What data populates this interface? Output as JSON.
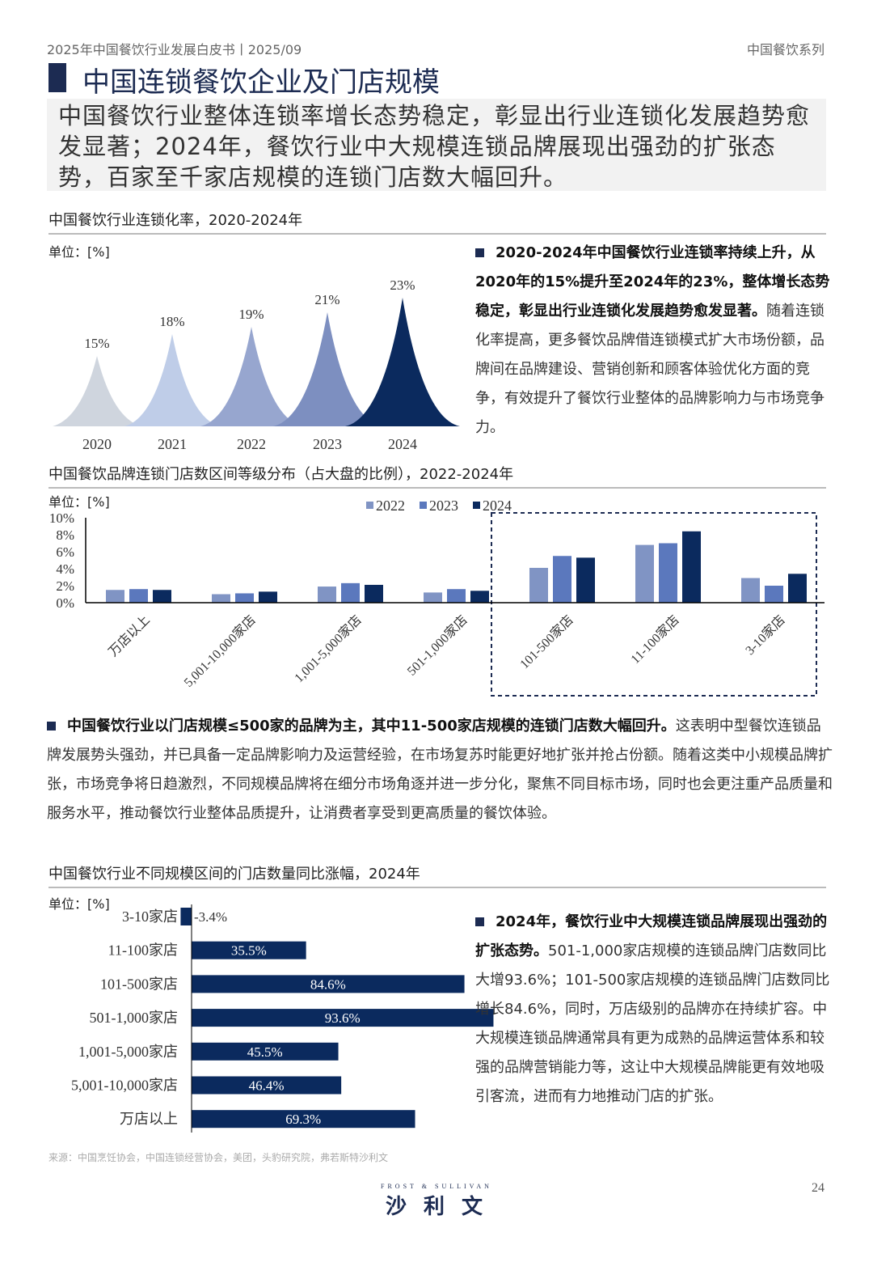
{
  "header": {
    "left": "2025年中国餐饮行业发展白皮书丨2025/09",
    "right": "中国餐饮系列"
  },
  "title": "中国连锁餐饮企业及门店规模",
  "summary": "中国餐饮行业整体连锁率增长态势稳定，彰显出行业连锁化发展趋势愈发显著；2024年，餐饮行业中大规模连锁品牌展现出强劲的扩张态势，百家至千家店规模的连锁门店数大幅回升。",
  "section1": {
    "title": "中国餐饮行业连锁化率，2020-2024年",
    "unit": "单位：[%]",
    "text_bold": "2020-2024年中国餐饮行业连锁率持续上升，从2020年的15%提升至2024年的23%，整体增长态势稳定，彰显出行业连锁化发展趋势愈发显著。",
    "text": "随着连锁化率提高，更多餐饮品牌借连锁模式扩大市场份额，品牌间在品牌建设、营销创新和顾客体验优化方面的竞争，有效提升了餐饮行业整体的品牌影响力与市场竞争力。"
  },
  "section2": {
    "title": "中国餐饮品牌连锁门店数区间等级分布（占大盘的比例），2022-2024年",
    "unit": "单位：[%]",
    "text_bold": "中国餐饮行业以门店规模≤500家的品牌为主，其中11-500家店规模的连锁门店数大幅回升。",
    "text": "这表明中型餐饮连锁品牌发展势头强劲，并已具备一定品牌影响力及运营经验，在市场复苏时能更好地扩张并抢占份额。随着这类中小规模品牌扩张，市场竞争将日趋激烈，不同规模品牌将在细分市场角逐并进一步分化，聚焦不同目标市场，同时也会更注重产品质量和服务水平，推动餐饮行业整体品质提升，让消费者享受到更高质量的餐饮体验。"
  },
  "section3": {
    "title": "中国餐饮行业不同规模区间的门店数量同比涨幅，2024年",
    "unit": "单位：[%]",
    "text_bold": "2024年，餐饮行业中大规模连锁品牌展现出强劲的扩张态势。",
    "text": "501-1,000家店规模的连锁品牌门店数同比大增93.6%；101-500家店规模的连锁品牌门店数同比增长84.6%，同时，万店级别的品牌亦在持续扩容。中大规模连锁品牌通常具有更为成熟的品牌运营体系和较强的品牌营销能力等，这让中大规模品牌能更有效地吸引客流，进而有力地推动门店的扩张。"
  },
  "source": "来源：中国烹饪协会，中国连锁经营协会，美团，头豹研究院，弗若斯特沙利文",
  "logo": {
    "en": "FROST & SULLIVAN",
    "cn": "沙 利 文"
  },
  "page_number": "24",
  "chart_data": [
    {
      "type": "area",
      "categories": [
        "2020",
        "2021",
        "2022",
        "2023",
        "2024"
      ],
      "values": [
        15,
        18,
        19,
        21,
        23
      ],
      "labels": [
        "15%",
        "18%",
        "19%",
        "21%",
        "23%"
      ],
      "colors": [
        "#cfd5de",
        "#bfcde8",
        "#97a6cf",
        "#7d8fc0",
        "#0b2a5e"
      ]
    },
    {
      "type": "bar",
      "categories": [
        "万店以上",
        "5,001-10,000家店",
        "1,001-5,000家店",
        "501-1,000家店",
        "101-500家店",
        "11-100家店",
        "3-10家店"
      ],
      "series": [
        {
          "name": "2022",
          "color": "#8094c4",
          "values": [
            1.5,
            1.0,
            1.9,
            1.2,
            4.1,
            6.8,
            2.9
          ]
        },
        {
          "name": "2023",
          "color": "#5b78bd",
          "values": [
            1.6,
            1.1,
            2.3,
            1.6,
            5.5,
            7.0,
            2.0
          ]
        },
        {
          "name": "2024",
          "color": "#0b2a5e",
          "values": [
            1.5,
            1.3,
            2.1,
            1.4,
            5.3,
            8.4,
            3.4
          ]
        }
      ],
      "ylim": [
        0,
        10
      ],
      "yticks": [
        "0%",
        "2%",
        "4%",
        "6%",
        "8%",
        "10%"
      ],
      "highlight": "101-500家店 to 3-10家店"
    },
    {
      "type": "bar",
      "orientation": "horizontal",
      "categories": [
        "3-10家店",
        "11-100家店",
        "101-500家店",
        "501-1,000家店",
        "1,001-5,000家店",
        "5,001-10,000家店",
        "万店以上"
      ],
      "values": [
        -3.4,
        35.5,
        84.6,
        93.6,
        45.5,
        46.4,
        69.3
      ],
      "labels": [
        "-3.4%",
        "35.5%",
        "84.6%",
        "93.6%",
        "45.5%",
        "46.4%",
        "69.3%"
      ],
      "color": "#0b2a5e"
    }
  ]
}
